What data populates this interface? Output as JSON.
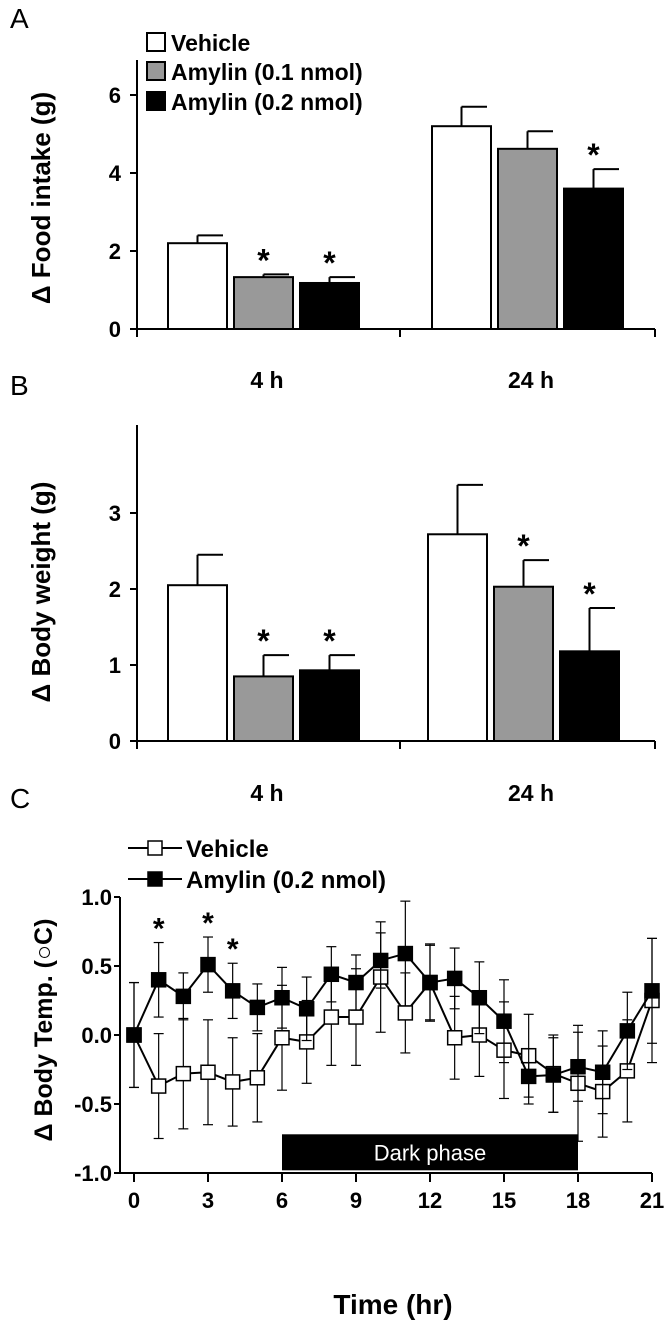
{
  "chart_data": [
    {
      "panel": "A",
      "type": "bar",
      "ylabel": "Δ Food intake (g)",
      "categories": [
        "4 h",
        "24 h"
      ],
      "ylim": [
        0,
        6
      ],
      "yticks": [
        "0",
        "2",
        "4",
        "6"
      ],
      "series": [
        {
          "name": "Vehicle",
          "color": "#ffffff",
          "values": [
            2.2,
            5.2
          ],
          "err": [
            0.2,
            0.5
          ],
          "sig": [
            false,
            false
          ]
        },
        {
          "name": "Amylin (0.1 nmol)",
          "color": "#999999",
          "values": [
            1.33,
            4.62
          ],
          "err": [
            0.07,
            0.45
          ],
          "sig": [
            true,
            false
          ]
        },
        {
          "name": "Amylin (0.2 nmol)",
          "color": "#000000",
          "values": [
            1.18,
            3.6
          ],
          "err": [
            0.15,
            0.5
          ],
          "sig": [
            true,
            true
          ]
        }
      ],
      "significance_symbol": "*",
      "legend": "top-left"
    },
    {
      "panel": "B",
      "type": "bar",
      "ylabel": "Δ Body weight (g)",
      "categories": [
        "4 h",
        "24 h"
      ],
      "ylim": [
        0,
        3.5
      ],
      "yticks": [
        "0",
        "1",
        "2",
        "3"
      ],
      "series": [
        {
          "name": "Vehicle",
          "color": "#ffffff",
          "values": [
            2.05,
            2.72
          ],
          "err": [
            0.4,
            0.65
          ],
          "sig": [
            false,
            false
          ]
        },
        {
          "name": "Amylin (0.1 nmol)",
          "color": "#999999",
          "values": [
            0.85,
            2.03
          ],
          "err": [
            0.28,
            0.35
          ],
          "sig": [
            true,
            true
          ]
        },
        {
          "name": "Amylin (0.2 nmol)",
          "color": "#000000",
          "values": [
            0.93,
            1.18
          ],
          "err": [
            0.2,
            0.57
          ],
          "sig": [
            true,
            true
          ]
        }
      ],
      "significance_symbol": "*"
    },
    {
      "panel": "C",
      "type": "line",
      "ylabel": "Δ Body Temp. (○C)",
      "xlabel": "Time (hr)",
      "xlim": [
        0,
        21
      ],
      "ylim": [
        -1.0,
        1.0
      ],
      "xticks": [
        "0",
        "3",
        "6",
        "9",
        "12",
        "15",
        "18",
        "21"
      ],
      "yticks": [
        "-1.0",
        "-0.5",
        "0.0",
        "0.5",
        "1.0"
      ],
      "x": [
        0,
        1,
        2,
        3,
        4,
        5,
        6,
        7,
        8,
        9,
        10,
        11,
        12,
        13,
        14,
        15,
        16,
        17,
        18,
        19,
        20,
        21
      ],
      "series": [
        {
          "name": "Vehicle",
          "marker": "open-square",
          "values": [
            0.0,
            -0.37,
            -0.28,
            -0.27,
            -0.34,
            -0.31,
            -0.02,
            -0.05,
            0.13,
            0.13,
            0.42,
            0.16,
            0.38,
            -0.02,
            0.0,
            -0.11,
            -0.15,
            -0.28,
            -0.35,
            -0.41,
            -0.26,
            0.25
          ],
          "err": [
            0.38,
            0.38,
            0.4,
            0.38,
            0.32,
            0.32,
            0.38,
            0.3,
            0.35,
            0.35,
            0.4,
            0.29,
            0.28,
            0.3,
            0.3,
            0.35,
            0.3,
            0.28,
            0.42,
            0.33,
            0.37,
            0.45
          ]
        },
        {
          "name": "Amylin (0.2 nmol)",
          "marker": "filled-square",
          "values": [
            0.0,
            0.4,
            0.28,
            0.51,
            0.32,
            0.2,
            0.27,
            0.19,
            0.44,
            0.38,
            0.54,
            0.59,
            0.38,
            0.41,
            0.27,
            0.1,
            -0.3,
            -0.29,
            -0.23,
            -0.27,
            0.03,
            0.32
          ],
          "err": [
            0.38,
            0.27,
            0.17,
            0.2,
            0.2,
            0.17,
            0.22,
            0.23,
            0.2,
            0.2,
            0.2,
            0.38,
            0.27,
            0.22,
            0.26,
            0.3,
            0.2,
            0.27,
            0.25,
            0.3,
            0.28,
            0.38
          ]
        }
      ],
      "significant_x": [
        1,
        3,
        4
      ],
      "significance_symbol": "*",
      "annotation": {
        "label": "Dark phase",
        "from": 6,
        "to": 18,
        "y": -0.85
      }
    }
  ],
  "panel_labels": [
    "A",
    "B",
    "C"
  ],
  "legend_ab": [
    "Vehicle",
    "Amylin (0.1 nmol)",
    "Amylin (0.2 nmol)"
  ],
  "legend_c": [
    "Vehicle",
    "Amylin (0.2 nmol)"
  ]
}
